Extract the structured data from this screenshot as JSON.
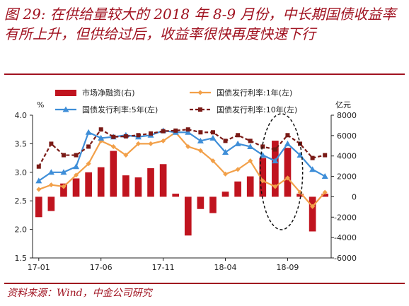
{
  "title": "图 29: 在供给量较大的 2018 年 8-9 月份，中长期国债收益率有所上升，但供给过后，收益率很快再度快速下行",
  "source": "资料来源：Wind，中金公司研究",
  "chart_data": {
    "type": "bar+line",
    "x": [
      "17-01",
      "17-02",
      "17-03",
      "17-04",
      "17-05",
      "17-06",
      "17-07",
      "17-08",
      "17-09",
      "17-10",
      "17-11",
      "17-12",
      "18-01",
      "18-02",
      "18-03",
      "18-04",
      "18-05",
      "18-06",
      "18-07",
      "18-08",
      "18-09",
      "18-10",
      "18-11",
      "18-12"
    ],
    "x_tick_labels": [
      "17-01",
      "17-06",
      "17-11",
      "18-04",
      "18-09"
    ],
    "left_axis": {
      "unit": "%",
      "ylim": [
        1.5,
        4.0
      ],
      "ticks": [
        "4.0",
        "3.5",
        "3.0",
        "2.5",
        "2.0",
        "1.5"
      ]
    },
    "right_axis": {
      "unit": "亿元",
      "ylim": [
        -6000,
        8000
      ],
      "ticks": [
        "8000",
        "6000",
        "4000",
        "2000",
        "0",
        "-2000",
        "-4000",
        "-6000"
      ]
    },
    "series": [
      {
        "name": "市场净融资(右)",
        "type": "bar",
        "axis": "right",
        "color": "#c0141f",
        "values": [
          -2000,
          -1400,
          1300,
          1800,
          2400,
          2900,
          4500,
          2100,
          1900,
          2800,
          3200,
          300,
          -3800,
          -1200,
          -1600,
          500,
          1500,
          2000,
          3800,
          5500,
          4800,
          300,
          -3400,
          300
        ]
      },
      {
        "name": "国债发行利率:1年(左)",
        "type": "line",
        "axis": "left",
        "color": "#f2a049",
        "marker": "diamond",
        "values": [
          2.7,
          2.78,
          2.75,
          2.95,
          3.15,
          3.55,
          3.45,
          3.3,
          3.5,
          3.5,
          3.55,
          3.7,
          3.45,
          3.38,
          3.2,
          2.97,
          3.05,
          3.2,
          2.85,
          2.75,
          2.9,
          2.65,
          2.4,
          2.65
        ]
      },
      {
        "name": "国债发行利率:5年(左)",
        "type": "line",
        "axis": "left",
        "color": "#3e8ed8",
        "marker": "triangle",
        "values": [
          2.85,
          3.0,
          3.0,
          3.1,
          3.7,
          3.6,
          3.62,
          3.65,
          3.62,
          3.65,
          3.73,
          3.7,
          3.7,
          3.55,
          3.6,
          3.35,
          3.5,
          3.45,
          3.3,
          3.2,
          3.5,
          3.3,
          3.05,
          2.93
        ]
      },
      {
        "name": "国债发行利率:10年(左)",
        "type": "line",
        "axis": "left",
        "color": "#7a1a16",
        "marker": "square",
        "dash": true,
        "values": [
          3.1,
          3.5,
          3.3,
          3.3,
          3.45,
          3.75,
          3.62,
          3.63,
          3.65,
          3.68,
          3.72,
          3.73,
          3.75,
          3.7,
          3.7,
          3.55,
          3.65,
          3.55,
          3.45,
          3.4,
          3.65,
          3.5,
          3.25,
          3.3
        ]
      }
    ],
    "annotation": "dashed ellipse around 2018-08 to 2018-09"
  }
}
